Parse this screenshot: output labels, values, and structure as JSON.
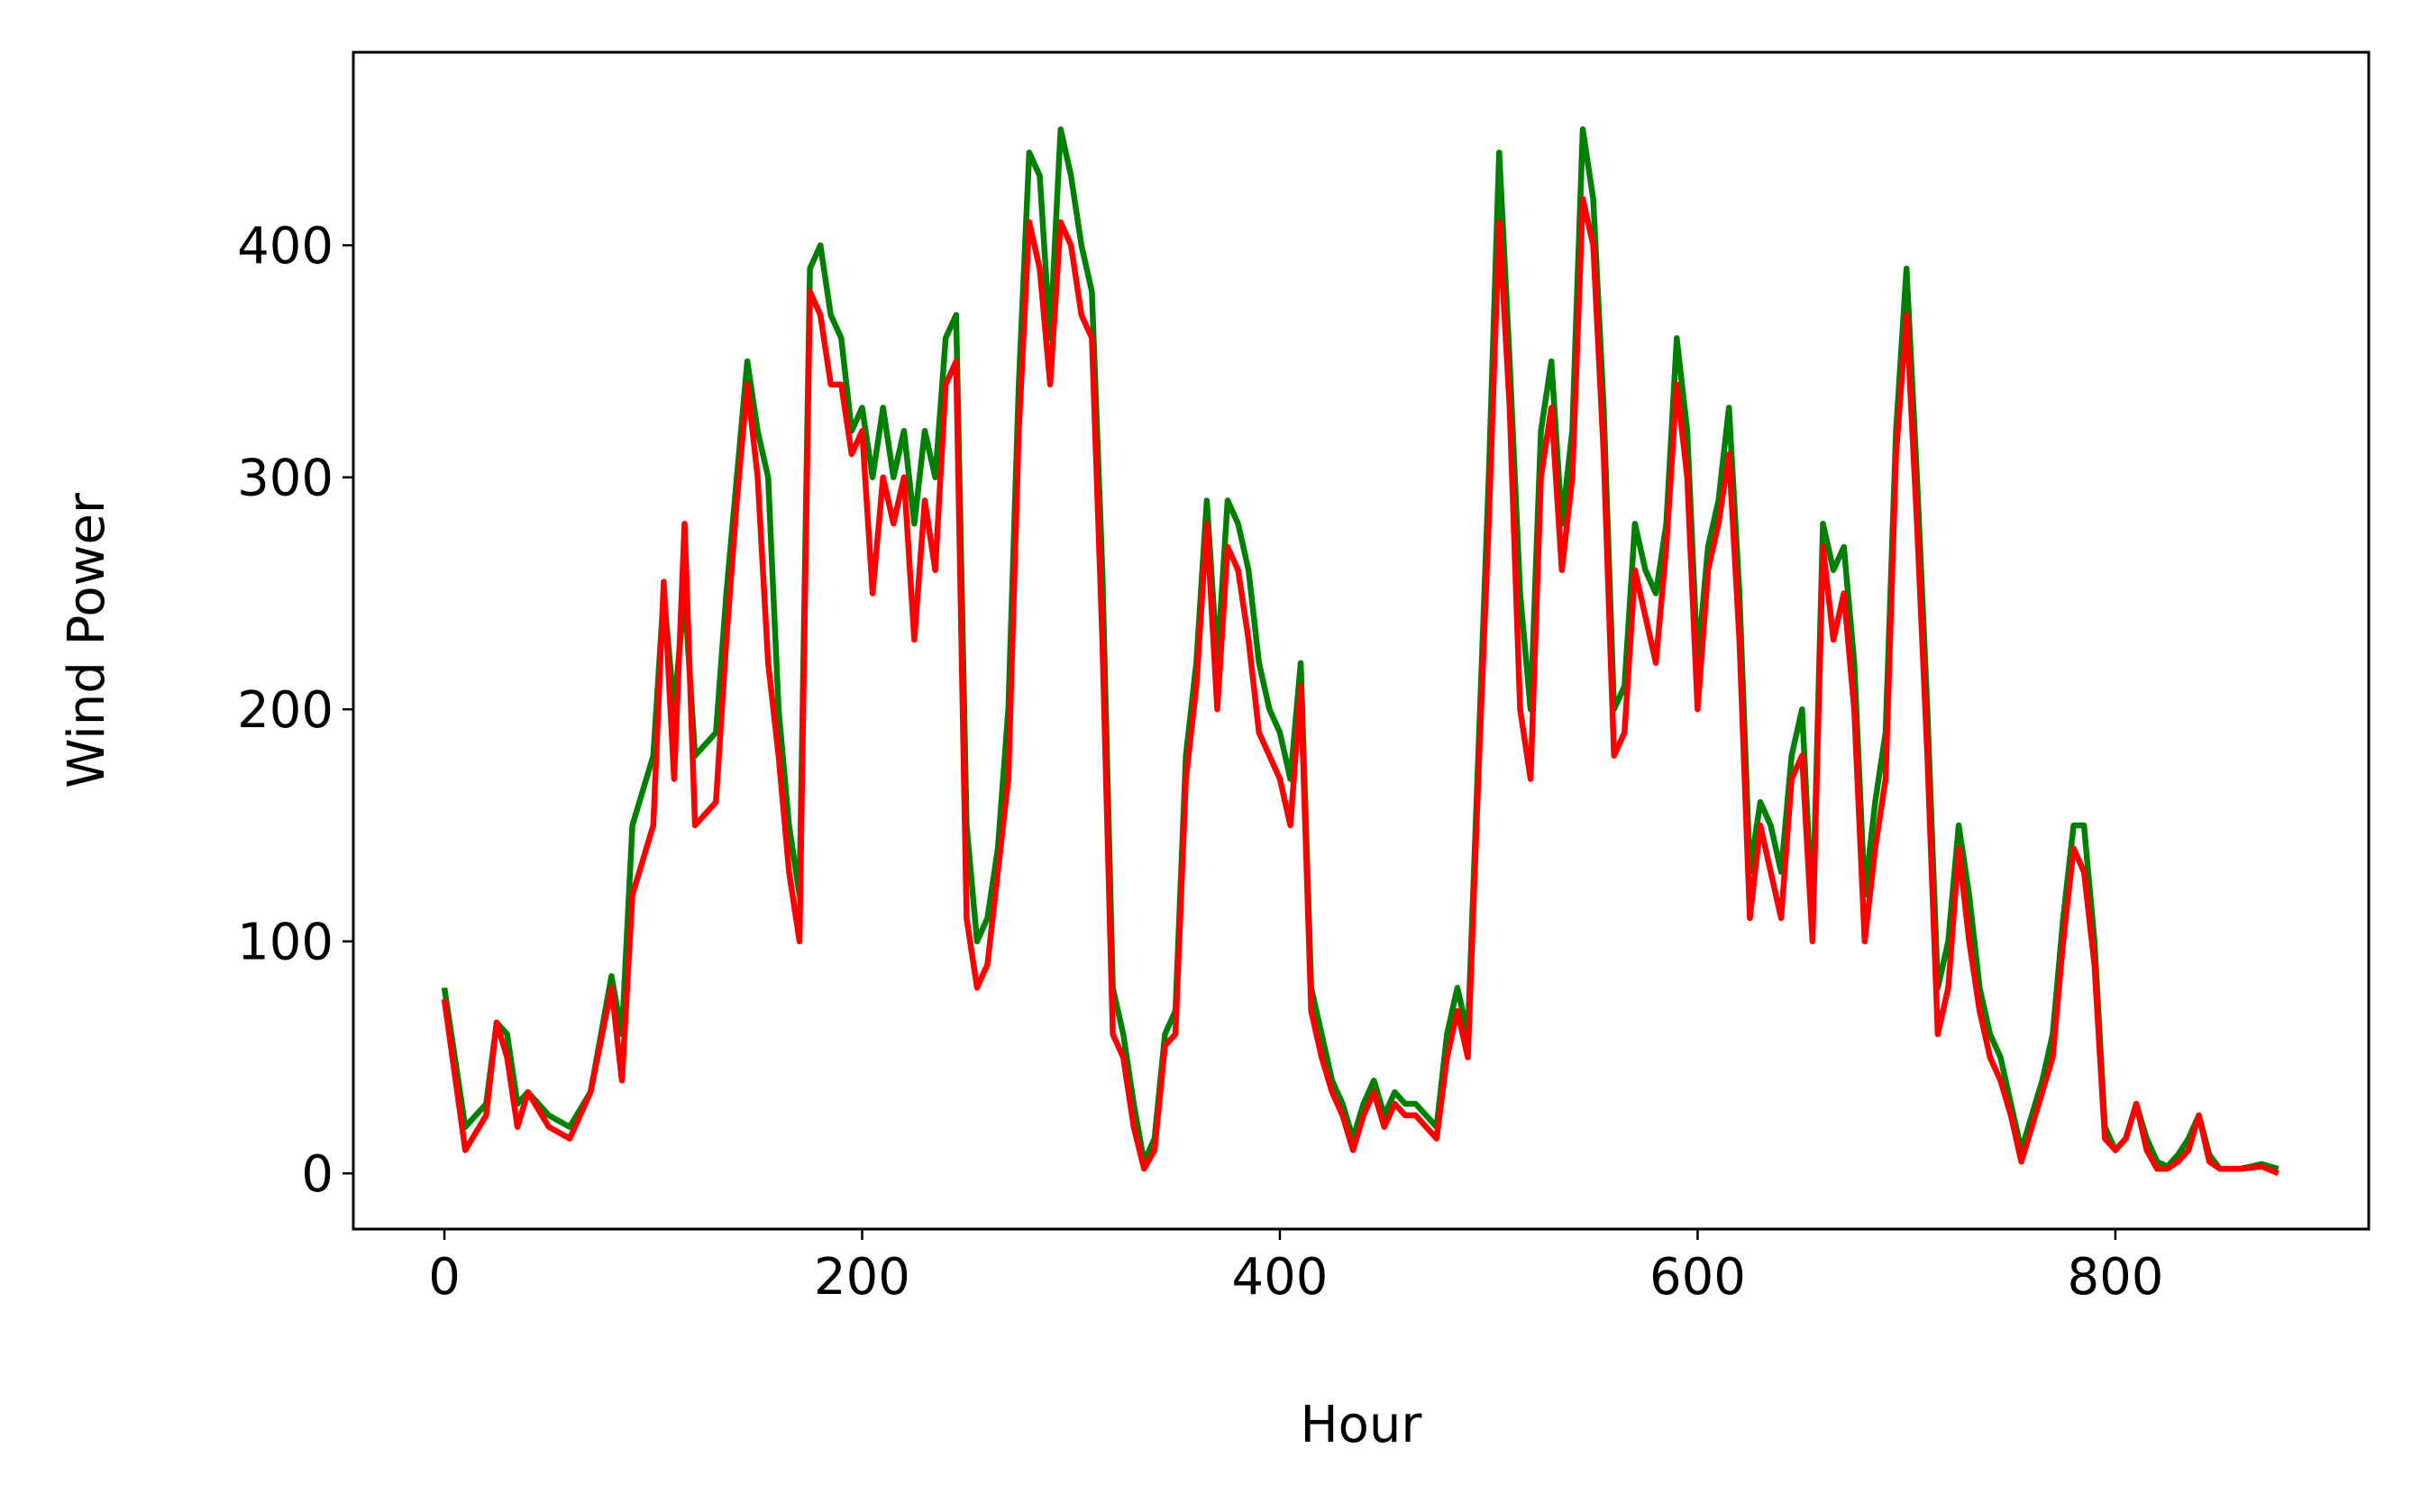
{
  "chart_data": {
    "type": "line",
    "xlabel": "Hour",
    "ylabel": "Wind Power",
    "x": [
      0,
      10,
      20,
      25,
      30,
      35,
      40,
      50,
      60,
      70,
      80,
      85,
      90,
      100,
      105,
      110,
      115,
      120,
      130,
      135,
      140,
      145,
      150,
      155,
      160,
      165,
      170,
      175,
      180,
      185,
      190,
      195,
      200,
      205,
      210,
      215,
      220,
      225,
      230,
      235,
      240,
      245,
      250,
      255,
      260,
      265,
      270,
      275,
      280,
      285,
      290,
      295,
      300,
      305,
      310,
      315,
      320,
      325,
      330,
      335,
      340,
      345,
      350,
      355,
      360,
      365,
      370,
      375,
      380,
      385,
      390,
      395,
      400,
      405,
      410,
      415,
      420,
      425,
      430,
      435,
      440,
      445,
      450,
      455,
      460,
      465,
      470,
      475,
      480,
      485,
      490,
      495,
      500,
      505,
      510,
      515,
      520,
      525,
      530,
      535,
      540,
      545,
      550,
      555,
      560,
      565,
      570,
      575,
      580,
      585,
      590,
      595,
      600,
      605,
      610,
      615,
      620,
      625,
      630,
      635,
      640,
      645,
      650,
      655,
      660,
      665,
      670,
      675,
      680,
      685,
      690,
      695,
      700,
      705,
      710,
      715,
      720,
      725,
      730,
      735,
      740,
      745,
      750,
      755,
      760,
      765,
      770,
      775,
      780,
      785,
      790,
      795,
      800,
      805,
      810,
      815,
      820,
      825,
      830,
      835,
      840,
      845,
      850,
      860,
      870,
      878
    ],
    "series": [
      {
        "color": "#008000",
        "values": [
          80,
          20,
          30,
          65,
          60,
          30,
          35,
          25,
          20,
          35,
          85,
          60,
          150,
          180,
          250,
          200,
          250,
          180,
          190,
          250,
          300,
          350,
          320,
          300,
          200,
          150,
          120,
          390,
          400,
          370,
          360,
          320,
          330,
          300,
          330,
          300,
          320,
          280,
          320,
          300,
          360,
          370,
          150,
          100,
          110,
          140,
          200,
          340,
          440,
          430,
          360,
          450,
          430,
          400,
          380,
          260,
          80,
          60,
          30,
          5,
          15,
          60,
          70,
          180,
          220,
          290,
          220,
          290,
          280,
          260,
          220,
          200,
          190,
          170,
          220,
          80,
          60,
          40,
          30,
          15,
          30,
          40,
          25,
          35,
          30,
          30,
          25,
          20,
          60,
          80,
          60,
          180,
          300,
          440,
          350,
          250,
          200,
          320,
          350,
          280,
          320,
          450,
          420,
          330,
          200,
          210,
          280,
          260,
          250,
          280,
          360,
          320,
          220,
          270,
          290,
          330,
          250,
          130,
          160,
          150,
          130,
          180,
          200,
          110,
          280,
          260,
          270,
          220,
          120,
          160,
          190,
          320,
          390,
          300,
          200,
          80,
          100,
          150,
          120,
          80,
          60,
          50,
          30,
          10,
          25,
          40,
          60,
          110,
          150,
          150,
          100,
          20,
          10,
          15,
          30,
          15,
          5,
          3,
          8,
          15,
          25,
          8,
          2,
          2,
          4,
          2
        ]
      },
      {
        "color": "#ff0000",
        "values": [
          75,
          10,
          25,
          65,
          50,
          20,
          35,
          20,
          15,
          35,
          80,
          40,
          120,
          150,
          255,
          170,
          280,
          150,
          160,
          230,
          290,
          340,
          300,
          220,
          180,
          130,
          100,
          380,
          370,
          340,
          340,
          310,
          320,
          250,
          300,
          280,
          300,
          230,
          290,
          260,
          340,
          350,
          110,
          80,
          90,
          130,
          170,
          320,
          410,
          390,
          340,
          410,
          400,
          370,
          360,
          230,
          60,
          50,
          20,
          2,
          10,
          55,
          60,
          170,
          210,
          280,
          200,
          270,
          260,
          230,
          190,
          180,
          170,
          150,
          210,
          70,
          50,
          35,
          25,
          10,
          25,
          35,
          20,
          30,
          25,
          25,
          20,
          15,
          50,
          70,
          50,
          170,
          280,
          410,
          330,
          200,
          170,
          300,
          330,
          260,
          300,
          420,
          400,
          310,
          180,
          190,
          260,
          240,
          220,
          270,
          340,
          300,
          200,
          260,
          280,
          310,
          230,
          110,
          150,
          130,
          110,
          170,
          180,
          100,
          270,
          230,
          250,
          200,
          100,
          140,
          170,
          310,
          370,
          280,
          180,
          60,
          80,
          140,
          100,
          70,
          50,
          40,
          25,
          5,
          20,
          35,
          50,
          100,
          140,
          130,
          90,
          15,
          10,
          15,
          30,
          10,
          2,
          2,
          5,
          10,
          25,
          5,
          2,
          2,
          3,
          0
        ]
      }
    ],
    "xlim": [
      -43.6,
      921.3
    ],
    "ylim": [
      -24,
      483.2
    ],
    "xticks": [
      0,
      200,
      400,
      600,
      800
    ],
    "yticks": [
      0,
      100,
      200,
      300,
      400
    ]
  }
}
